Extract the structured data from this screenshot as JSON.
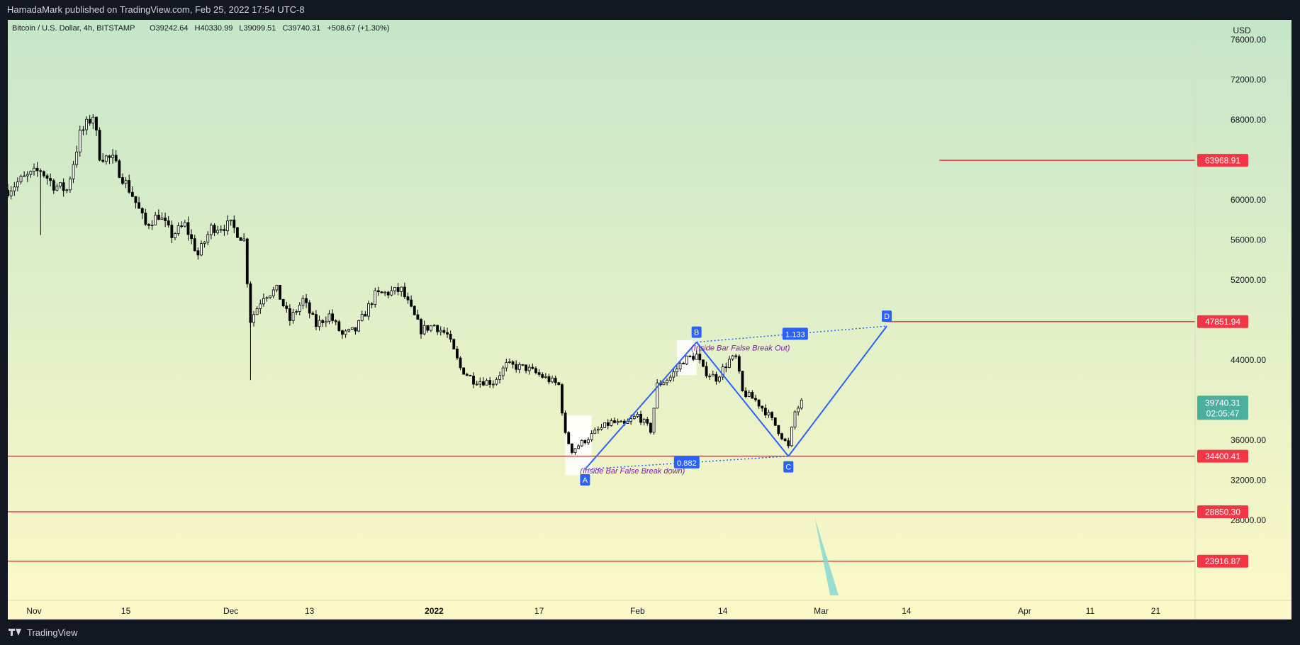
{
  "header": {
    "published": "HamadaMark published on TradingView.com, Feb 25, 2022 17:54 UTC-8"
  },
  "footer": {
    "brand": "TradingView"
  },
  "colors": {
    "frame": "#131722",
    "bg_top": "#c5e6c8",
    "bg_bottom": "#fdf9c7",
    "candle": "#000000",
    "level_line": "#f23645",
    "pattern": "#2962ff",
    "note_text": "#7b1fa2",
    "price_tag": "#4caf9e"
  },
  "chart_data": {
    "type": "candlestick",
    "symbol": "Bitcoin / U.S. Dollar, 4h, BITSTAMP",
    "ohlc": {
      "open": "O39242.64",
      "high": "H40330.99",
      "low": "L39099.51",
      "close": "C39740.31",
      "change": "+508.67 (+1.30%)"
    },
    "currency": "USD",
    "ylim": [
      20000,
      78000
    ],
    "y_ticks": [
      76000,
      72000,
      68000,
      60000,
      56000,
      52000,
      44000,
      36000,
      32000,
      28000
    ],
    "y_tick_labels": [
      "76000.00",
      "72000.00",
      "68000.00",
      "60000.00",
      "56000.00",
      "52000.00",
      "44000.00",
      "36000.00",
      "32000.00",
      "28000.00"
    ],
    "x_axis_start": "2021-10-28",
    "x_axis_end": "2022-04-27",
    "x_ticks": [
      {
        "date": "2021-11-01",
        "label": "Nov",
        "bold": false
      },
      {
        "date": "2021-11-15",
        "label": "15",
        "bold": false
      },
      {
        "date": "2021-12-01",
        "label": "Dec",
        "bold": false
      },
      {
        "date": "2021-12-13",
        "label": "13",
        "bold": false
      },
      {
        "date": "2022-01-01",
        "label": "2022",
        "bold": true
      },
      {
        "date": "2022-01-17",
        "label": "17",
        "bold": false
      },
      {
        "date": "2022-02-01",
        "label": "Feb",
        "bold": false
      },
      {
        "date": "2022-02-14",
        "label": "14",
        "bold": false
      },
      {
        "date": "2022-03-01",
        "label": "Mar",
        "bold": false
      },
      {
        "date": "2022-03-14",
        "label": "14",
        "bold": false
      },
      {
        "date": "2022-04-01",
        "label": "Apr",
        "bold": false
      },
      {
        "date": "2022-04-11",
        "label": "11",
        "bold": false
      },
      {
        "date": "2022-04-21",
        "label": "21",
        "bold": false
      }
    ],
    "price_path": [
      [
        "2021-10-28",
        61000
      ],
      [
        "2021-10-30",
        62000
      ],
      [
        "2021-11-02",
        63000
      ],
      [
        "2021-11-04",
        61500
      ],
      [
        "2021-11-06",
        61000
      ],
      [
        "2021-11-08",
        66500
      ],
      [
        "2021-11-10",
        68500
      ],
      [
        "2021-11-11",
        64500
      ],
      [
        "2021-11-13",
        64000
      ],
      [
        "2021-11-16",
        60500
      ],
      [
        "2021-11-18",
        57500
      ],
      [
        "2021-11-20",
        58500
      ],
      [
        "2021-11-22",
        56500
      ],
      [
        "2021-11-24",
        57500
      ],
      [
        "2021-11-26",
        54500
      ],
      [
        "2021-11-28",
        57200
      ],
      [
        "2021-12-01",
        57500
      ],
      [
        "2021-12-03",
        56000
      ],
      [
        "2021-12-04",
        48000
      ],
      [
        "2021-12-06",
        50500
      ],
      [
        "2021-12-08",
        51000
      ],
      [
        "2021-12-10",
        48000
      ],
      [
        "2021-12-12",
        50000
      ],
      [
        "2021-12-14",
        47500
      ],
      [
        "2021-12-16",
        48500
      ],
      [
        "2021-12-18",
        46500
      ],
      [
        "2021-12-20",
        47000
      ],
      [
        "2021-12-23",
        50500
      ],
      [
        "2021-12-27",
        51000
      ],
      [
        "2021-12-30",
        47000
      ],
      [
        "2022-01-01",
        47500
      ],
      [
        "2022-01-03",
        46500
      ],
      [
        "2022-01-05",
        43200
      ],
      [
        "2022-01-07",
        42000
      ],
      [
        "2022-01-10",
        41800
      ],
      [
        "2022-01-12",
        43500
      ],
      [
        "2022-01-15",
        43200
      ],
      [
        "2022-01-18",
        42200
      ],
      [
        "2022-01-20",
        41500
      ],
      [
        "2022-01-21",
        36500
      ],
      [
        "2022-01-22",
        35000
      ],
      [
        "2022-01-24",
        36000
      ],
      [
        "2022-01-26",
        37000
      ],
      [
        "2022-01-28",
        37800
      ],
      [
        "2022-01-30",
        37500
      ],
      [
        "2022-02-01",
        38500
      ],
      [
        "2022-02-03",
        37000
      ],
      [
        "2022-02-04",
        41500
      ],
      [
        "2022-02-06",
        42300
      ],
      [
        "2022-02-08",
        44000
      ],
      [
        "2022-02-10",
        44500
      ],
      [
        "2022-02-11",
        43000
      ],
      [
        "2022-02-13",
        42200
      ],
      [
        "2022-02-15",
        44000
      ],
      [
        "2022-02-16",
        44200
      ],
      [
        "2022-02-17",
        40800
      ],
      [
        "2022-02-19",
        40000
      ],
      [
        "2022-02-21",
        38500
      ],
      [
        "2022-02-22",
        37500
      ],
      [
        "2022-02-24",
        35300
      ],
      [
        "2022-02-25",
        38800
      ],
      [
        "2022-02-26",
        39740
      ]
    ],
    "horizontal_levels": [
      {
        "value": 63968.91,
        "label": "63968.91",
        "from_date": "2022-03-19"
      },
      {
        "value": 47851.94,
        "label": "47851.94",
        "from_date": "2022-03-11"
      },
      {
        "value": 34400.41,
        "label": "34400.41",
        "from_date": "2021-10-28"
      },
      {
        "value": 28850.3,
        "label": "28850.30",
        "from_date": "2021-10-28"
      },
      {
        "value": 23916.87,
        "label": "23916.87",
        "from_date": "2021-10-28"
      }
    ],
    "current_price": {
      "value": 39740.31,
      "label": "39740.31",
      "countdown": "02:05:47"
    },
    "pattern": {
      "points": [
        {
          "id": "A",
          "date": "2022-01-24",
          "price": 33100
        },
        {
          "id": "B",
          "date": "2022-02-10",
          "price": 45800
        },
        {
          "id": "C",
          "date": "2022-02-24",
          "price": 34400
        },
        {
          "id": "D",
          "date": "2022-03-11",
          "price": 47400
        }
      ],
      "ratio_ac": "0.882",
      "ratio_bd": "1.133"
    },
    "annotations": {
      "breakdown_note": "(Inside Bar False Break down)",
      "breakout_note": "(Inside Bar False Break Out)"
    },
    "highlight_boxes": [
      {
        "from_date": "2022-01-21",
        "to_date": "2022-01-25",
        "high": 38500,
        "low": 32500
      },
      {
        "from_date": "2022-02-07",
        "to_date": "2022-02-10",
        "high": 46000,
        "low": 42500
      }
    ],
    "projection_arrow": {
      "from_date": "2022-02-28",
      "to_date": "2022-03-03",
      "from_price": 28300,
      "to_price": 20500
    }
  }
}
